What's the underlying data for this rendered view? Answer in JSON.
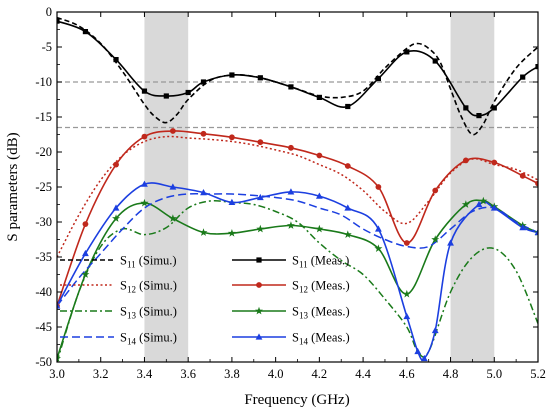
{
  "chart_data": {
    "type": "line",
    "xlabel": "Frequency (GHz)",
    "ylabel": "S parameters (dB)",
    "xlim": [
      3.0,
      5.2
    ],
    "ylim": [
      -50,
      0
    ],
    "xticks": [
      "3.0",
      "3.2",
      "3.4",
      "3.6",
      "3.8",
      "4.0",
      "4.2",
      "4.4",
      "4.6",
      "4.8",
      "5.0",
      "5.2"
    ],
    "yticks": [
      "0",
      "-5",
      "-10",
      "-15",
      "-20",
      "-25",
      "-30",
      "-35",
      "-40",
      "-45",
      "-50"
    ],
    "shaded_bands": [
      [
        3.4,
        3.6
      ],
      [
        4.8,
        5.0
      ]
    ],
    "reference_lines": [
      -10,
      -16.5
    ],
    "colors": {
      "s11": "#000000",
      "s12": "#c0281c",
      "s13": "#1a7a1a",
      "s14": "#1c3fe0",
      "band": "#d9d9d9",
      "ref": "#999999"
    },
    "legend": {
      "placement": "lower-left",
      "entries": [
        {
          "key": "s11_sim",
          "base": "S",
          "sub": "11",
          "tag": "(Simu.)"
        },
        {
          "key": "s11_meas",
          "base": "S",
          "sub": "11",
          "tag": "(Meas.)"
        },
        {
          "key": "s12_sim",
          "base": "S",
          "sub": "12",
          "tag": "(Simu.)"
        },
        {
          "key": "s12_meas",
          "base": "S",
          "sub": "12",
          "tag": "(Meas.)"
        },
        {
          "key": "s13_sim",
          "base": "S",
          "sub": "13",
          "tag": "(Simu.)"
        },
        {
          "key": "s13_meas",
          "base": "S",
          "sub": "13",
          "tag": "(Meas.)"
        },
        {
          "key": "s14_sim",
          "base": "S",
          "sub": "14",
          "tag": "(Simu.)"
        },
        {
          "key": "s14_meas",
          "base": "S",
          "sub": "14",
          "tag": "(Meas.)"
        }
      ]
    },
    "series": [
      {
        "key": "s11_sim",
        "color": "#000000",
        "dash": "5,3",
        "width": 1.6,
        "marker": "none",
        "x": [
          3.0,
          3.1,
          3.2,
          3.3,
          3.4,
          3.45,
          3.5,
          3.55,
          3.6,
          3.7,
          3.8,
          3.9,
          4.0,
          4.1,
          4.2,
          4.3,
          4.4,
          4.5,
          4.6,
          4.65,
          4.7,
          4.75,
          4.8,
          4.85,
          4.9,
          4.95,
          5.0,
          5.1,
          5.2
        ],
        "y": [
          -0.8,
          -2,
          -4.5,
          -8.5,
          -13.2,
          -15,
          -15.8,
          -14.6,
          -12.5,
          -9.8,
          -9,
          -9.2,
          -10,
          -11,
          -12,
          -12.2,
          -11.3,
          -8,
          -5.2,
          -4.5,
          -5.2,
          -7,
          -11,
          -15,
          -17.5,
          -16,
          -12.8,
          -8,
          -5
        ]
      },
      {
        "key": "s11_meas",
        "color": "#000000",
        "dash": "",
        "width": 1.6,
        "marker": "square",
        "x": [
          3.0,
          3.13,
          3.27,
          3.4,
          3.5,
          3.6,
          3.67,
          3.8,
          3.93,
          4.07,
          4.2,
          4.33,
          4.47,
          4.6,
          4.73,
          4.87,
          4.93,
          5.0,
          5.13,
          5.2
        ],
        "y": [
          -1.3,
          -2.8,
          -6.8,
          -11.3,
          -12,
          -11.5,
          -10,
          -9,
          -9.4,
          -10.7,
          -12.2,
          -13.5,
          -9.5,
          -5.7,
          -7,
          -13.7,
          -14.8,
          -13.7,
          -9.3,
          -7.8
        ]
      },
      {
        "key": "s12_sim",
        "color": "#c0281c",
        "dash": "2,2.5",
        "width": 1.5,
        "marker": "none",
        "x": [
          3.0,
          3.1,
          3.2,
          3.3,
          3.4,
          3.5,
          3.6,
          3.7,
          3.8,
          3.9,
          4.0,
          4.1,
          4.2,
          4.3,
          4.4,
          4.5,
          4.6,
          4.7,
          4.8,
          4.9,
          5.0,
          5.1,
          5.2
        ],
        "y": [
          -35,
          -29,
          -24,
          -20.5,
          -18.5,
          -17.8,
          -18,
          -18.2,
          -18.5,
          -19,
          -19.7,
          -20.5,
          -21.8,
          -23.2,
          -25.5,
          -28.5,
          -30.2,
          -27,
          -23,
          -21,
          -21.8,
          -22.5,
          -24
        ]
      },
      {
        "key": "s12_meas",
        "color": "#c0281c",
        "dash": "",
        "width": 1.6,
        "marker": "circle",
        "x": [
          3.0,
          3.13,
          3.27,
          3.4,
          3.53,
          3.67,
          3.8,
          3.93,
          4.07,
          4.2,
          4.33,
          4.47,
          4.6,
          4.73,
          4.87,
          5.0,
          5.13,
          5.2
        ],
        "y": [
          -42,
          -30.3,
          -21.8,
          -17.8,
          -17,
          -17.4,
          -17.9,
          -18.6,
          -19.4,
          -20.5,
          -22,
          -25,
          -33,
          -25.5,
          -21.2,
          -21.5,
          -23.4,
          -24.5
        ]
      },
      {
        "key": "s13_sim",
        "color": "#1a7a1a",
        "dash": "7,3,2,3",
        "width": 1.5,
        "marker": "none",
        "x": [
          3.0,
          3.1,
          3.2,
          3.3,
          3.4,
          3.5,
          3.6,
          3.7,
          3.8,
          3.9,
          4.0,
          4.1,
          4.2,
          4.3,
          4.4,
          4.5,
          4.6,
          4.65,
          4.7,
          4.8,
          4.9,
          5.0,
          5.1,
          5.2
        ],
        "y": [
          -50,
          -40,
          -33.5,
          -31,
          -31.8,
          -30.8,
          -28,
          -27,
          -27.2,
          -27.5,
          -28.5,
          -30,
          -33,
          -35.5,
          -37.5,
          -41,
          -45,
          -48.5,
          -48.5,
          -40,
          -35,
          -33.8,
          -37,
          -44.5
        ]
      },
      {
        "key": "s13_meas",
        "color": "#1a7a1a",
        "dash": "",
        "width": 1.6,
        "marker": "star",
        "x": [
          3.0,
          3.13,
          3.27,
          3.4,
          3.53,
          3.67,
          3.8,
          3.93,
          4.07,
          4.2,
          4.33,
          4.47,
          4.6,
          4.73,
          4.87,
          4.95,
          5.0,
          5.13,
          5.2
        ],
        "y": [
          -49.5,
          -37.5,
          -29.5,
          -27.3,
          -29.5,
          -31.5,
          -31.6,
          -31,
          -30.5,
          -31,
          -31.8,
          -33.8,
          -40.3,
          -32.5,
          -27.5,
          -27,
          -27.8,
          -30.5,
          -31.5
        ]
      },
      {
        "key": "s14_sim",
        "color": "#1c3fe0",
        "dash": "8,4",
        "width": 1.5,
        "marker": "none",
        "x": [
          3.0,
          3.1,
          3.2,
          3.3,
          3.4,
          3.5,
          3.6,
          3.7,
          3.8,
          3.9,
          4.0,
          4.1,
          4.2,
          4.3,
          4.4,
          4.5,
          4.6,
          4.7,
          4.8,
          4.9,
          5.0,
          5.1,
          5.2
        ],
        "y": [
          -42,
          -38,
          -34.5,
          -31,
          -28,
          -26.5,
          -26,
          -26,
          -26,
          -26.2,
          -26.5,
          -27,
          -28,
          -29,
          -31,
          -32.5,
          -33.5,
          -33.5,
          -31,
          -28.5,
          -28,
          -30,
          -31.5
        ]
      },
      {
        "key": "s14_meas",
        "color": "#1c3fe0",
        "dash": "",
        "width": 1.6,
        "marker": "triangle",
        "x": [
          3.0,
          3.13,
          3.27,
          3.4,
          3.53,
          3.67,
          3.8,
          3.93,
          4.07,
          4.2,
          4.33,
          4.47,
          4.6,
          4.65,
          4.68,
          4.73,
          4.8,
          4.93,
          5.0,
          5.13,
          5.2
        ],
        "y": [
          -42,
          -34.5,
          -28,
          -24.6,
          -25,
          -25.8,
          -27.2,
          -26.5,
          -25.7,
          -26.3,
          -28,
          -31,
          -43.5,
          -48.5,
          -49.5,
          -45.5,
          -33,
          -27.5,
          -28,
          -30.8,
          -31.5
        ]
      }
    ]
  }
}
